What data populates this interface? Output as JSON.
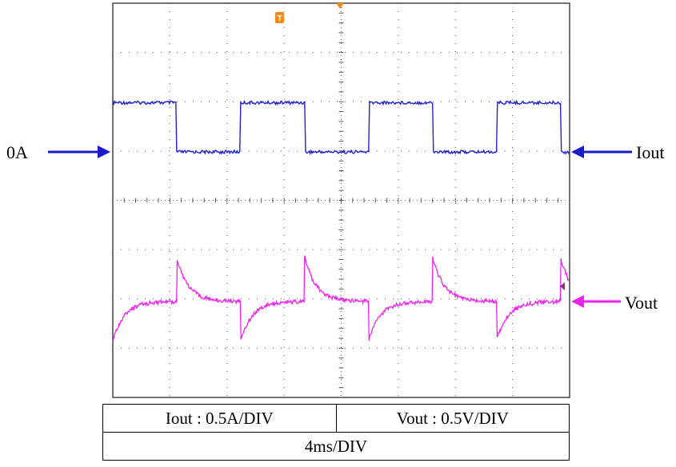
{
  "chart_data": {
    "type": "line",
    "title": "",
    "xlabel": "",
    "ylabel": "",
    "grid": true,
    "x_unit": "ms",
    "x_range": [
      0,
      40
    ],
    "series": [
      {
        "name": "Iout",
        "color": "#2222cc",
        "kind": "square",
        "high": 0.5,
        "low": 0.0,
        "period_ms": 11.2,
        "high_duration_ms": 5.6,
        "zero_label": "0A",
        "scale": "0.5A/DIV"
      },
      {
        "name": "Vout",
        "color": "#ee22ee",
        "kind": "load-transient",
        "nominal": 0,
        "overshoot": 0.45,
        "undershoot": -0.4,
        "scale": "0.5V/DIV"
      }
    ]
  },
  "labels": {
    "zero": "0A",
    "iout": "Iout",
    "vout": "Vout"
  },
  "caption": {
    "iout_scale": "Iout : 0.5A/DIV",
    "vout_scale": "Vout : 0.5V/DIV",
    "time_scale": "4ms/DIV"
  },
  "markers": {
    "trigger": "T"
  },
  "colors": {
    "iout": "#2222cc",
    "vout": "#ee22ee",
    "trigger": "#f08a1c",
    "arrow": "#1a1acc",
    "vout_arrow": "#ee22ee",
    "grid": "#555555"
  }
}
